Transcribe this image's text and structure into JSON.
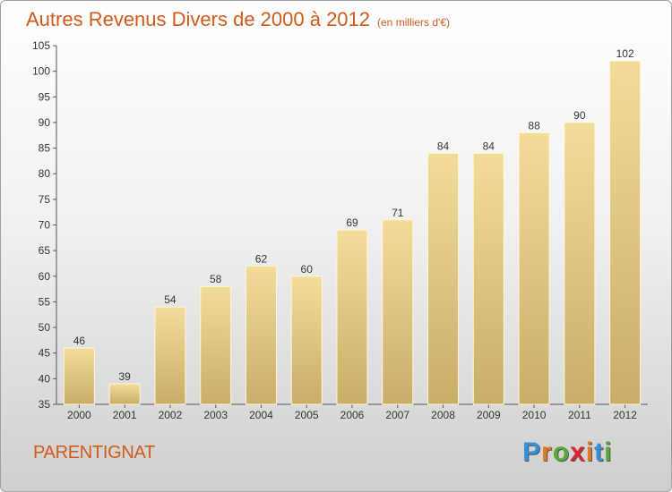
{
  "title": "Autres Revenus Divers de 2000 à 2012",
  "unit": "(en milliers d'€)",
  "town": "PARENTIGNAT",
  "logo": {
    "letters": [
      "P",
      "r",
      "o",
      "x",
      "i",
      "t",
      "i"
    ],
    "colors": [
      "#3a8fd6",
      "#e07a1f",
      "#5aa83a",
      "#d9262a",
      "#e07a1f",
      "#3a8fd6",
      "#5aa83a"
    ]
  },
  "colors": {
    "bar_light": "#f3dc9a",
    "bar_dark": "#c9ad68",
    "title": "#d05a1a"
  },
  "chart_data": {
    "type": "bar",
    "title": "Autres Revenus Divers de 2000 à 2012",
    "subtitle": "(en milliers d'€)",
    "categories": [
      "2000",
      "2001",
      "2002",
      "2003",
      "2004",
      "2005",
      "2006",
      "2007",
      "2008",
      "2009",
      "2010",
      "2011",
      "2012"
    ],
    "values": [
      46,
      39,
      54,
      58,
      62,
      60,
      69,
      71,
      84,
      84,
      88,
      90,
      102
    ],
    "ylim": [
      35,
      105
    ],
    "yticks": [
      35,
      40,
      45,
      50,
      55,
      60,
      65,
      70,
      75,
      80,
      85,
      90,
      95,
      100,
      105
    ],
    "xlabel": "",
    "ylabel": "",
    "grid": false,
    "legend": "none"
  }
}
